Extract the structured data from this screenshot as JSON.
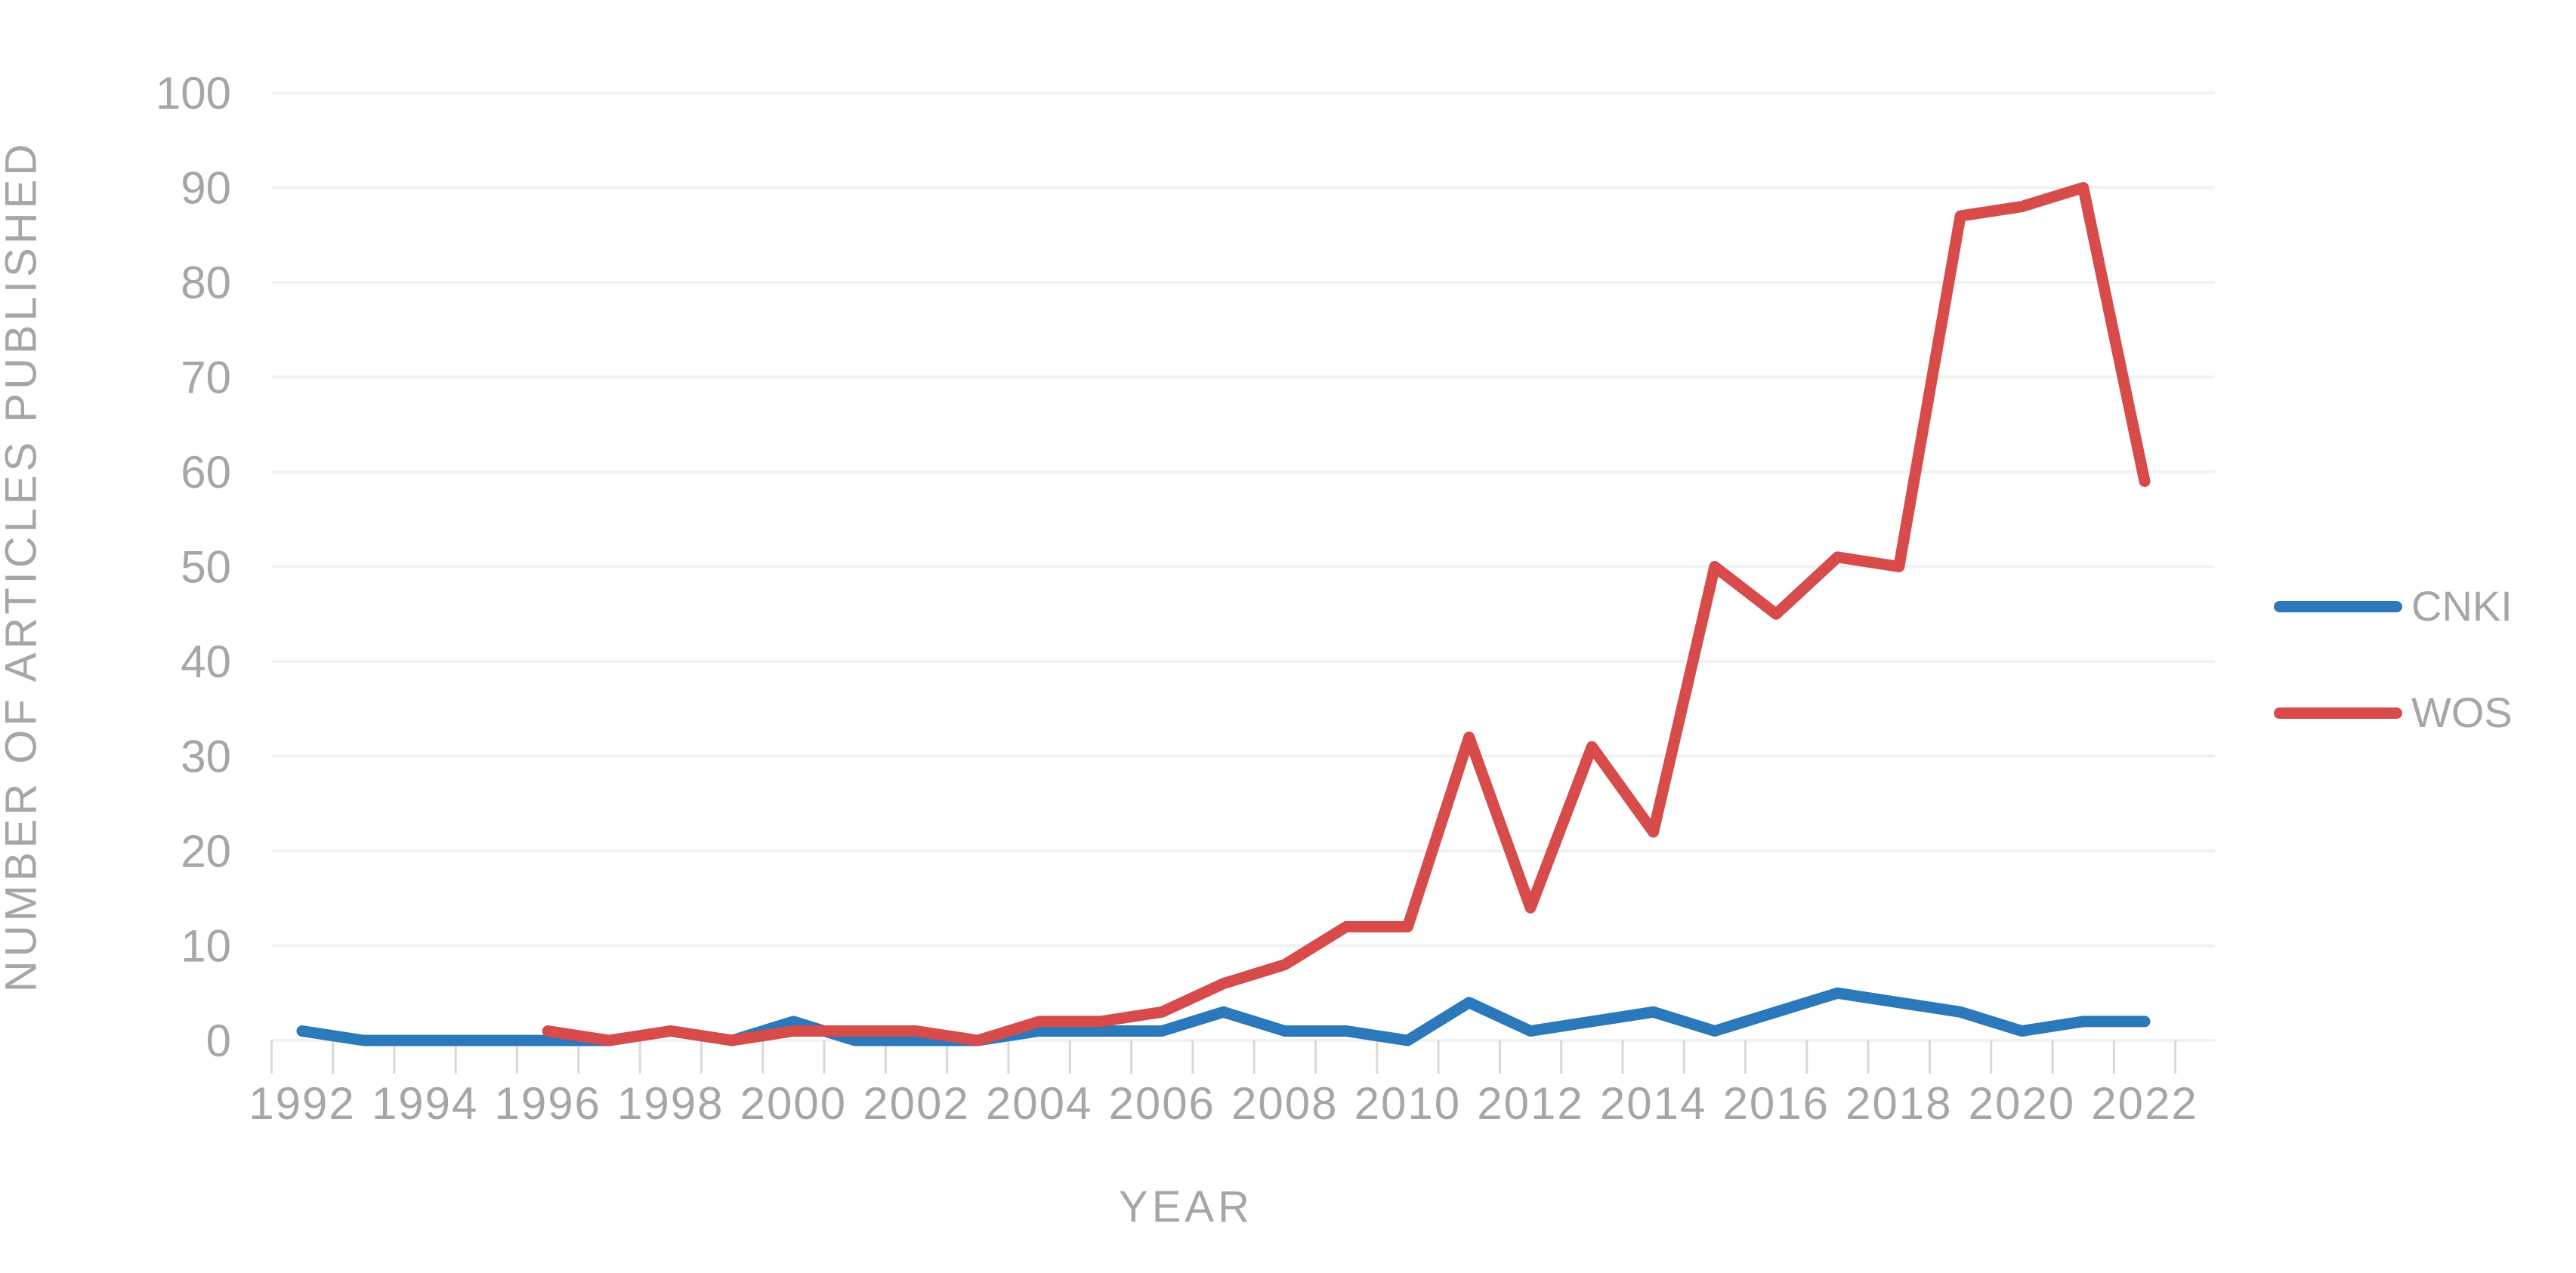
{
  "chart_data": {
    "type": "line",
    "title": "",
    "xlabel": "YEAR",
    "ylabel": "NUMBER OF ARTICLES PUBLISHED",
    "x": [
      1992,
      1993,
      1994,
      1995,
      1996,
      1997,
      1998,
      1999,
      2000,
      2001,
      2002,
      2003,
      2004,
      2005,
      2006,
      2007,
      2008,
      2009,
      2010,
      2011,
      2012,
      2013,
      2014,
      2015,
      2016,
      2017,
      2018,
      2019,
      2020,
      2021,
      2022
    ],
    "x_tick_labels": [
      1992,
      1994,
      1996,
      1998,
      2000,
      2002,
      2004,
      2006,
      2008,
      2010,
      2012,
      2014,
      2016,
      2018,
      2020,
      2022
    ],
    "y_ticks": [
      0,
      10,
      20,
      30,
      40,
      50,
      60,
      70,
      80,
      90,
      100
    ],
    "ylim": [
      0,
      100
    ],
    "grid": "horizontal",
    "legend_position": "right",
    "series": [
      {
        "name": "CNKI",
        "color": "#2b78bb",
        "values": [
          1,
          0,
          0,
          0,
          0,
          0,
          1,
          0,
          2,
          0,
          0,
          0,
          1,
          1,
          1,
          3,
          1,
          1,
          0,
          4,
          1,
          2,
          3,
          1,
          3,
          5,
          4,
          3,
          1,
          2,
          2
        ]
      },
      {
        "name": "WOS",
        "color": "#d84b4b",
        "values": [
          null,
          null,
          null,
          null,
          1,
          0,
          1,
          0,
          1,
          1,
          1,
          0,
          2,
          2,
          3,
          6,
          8,
          12,
          12,
          32,
          14,
          31,
          22,
          50,
          45,
          51,
          50,
          87,
          88,
          90,
          59
        ]
      }
    ],
    "colors": {
      "axis_text": "#a6a6a6",
      "gridline": "#f2f2f2",
      "tick_mark": "#d9d9d9"
    }
  }
}
